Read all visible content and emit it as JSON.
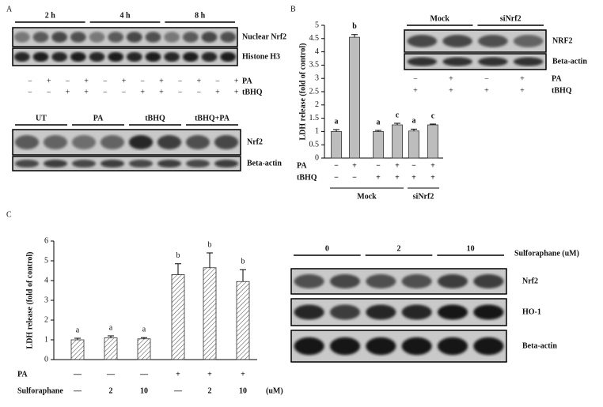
{
  "panel_labels": [
    "A",
    "B",
    "C"
  ],
  "blot_a_top": {
    "groups": [
      "2 h",
      "4 h",
      "8 h"
    ],
    "bands": [
      "Nuclear Nrf2",
      "Histone H3"
    ],
    "treatments": [
      {
        "name": "PA",
        "marks": [
          "−",
          "+",
          "−",
          "+",
          "−",
          "+",
          "−",
          "+",
          "−",
          "+",
          "−",
          "+"
        ]
      },
      {
        "name": "tBHQ",
        "marks": [
          "−",
          "−",
          "+",
          "+",
          "−",
          "−",
          "+",
          "+",
          "−",
          "−",
          "+",
          "+"
        ]
      }
    ]
  },
  "blot_a_bottom": {
    "groups": [
      "UT",
      "PA",
      "tBHQ",
      "tBHQ+PA"
    ],
    "bands": [
      "Nrf2",
      "Beta-actin"
    ]
  },
  "blot_b": {
    "groups": [
      "Mock",
      "siNrf2"
    ],
    "bands": [
      "NRF2",
      "Beta-actin"
    ],
    "treatments": [
      {
        "name": "PA",
        "marks": [
          "−",
          "+",
          "−",
          "+"
        ]
      },
      {
        "name": "tBHQ",
        "marks": [
          "+",
          "+",
          "+",
          "+"
        ]
      }
    ]
  },
  "blot_c": {
    "title": "Sulforaphane (uM)",
    "groups": [
      "0",
      "2",
      "10"
    ],
    "bands": [
      "Nrf2",
      "HO-1",
      "Beta-actin"
    ]
  },
  "chart_data": [
    {
      "type": "bar",
      "ylabel": "LDH release (fold of control)",
      "color": "#bdbdbd",
      "hatch": false,
      "values": [
        1,
        4.55,
        1,
        1.25,
        1.02,
        1.25
      ],
      "errors": [
        0.07,
        0.1,
        0.04,
        0.06,
        0.07,
        0.03
      ],
      "bar_labels": [
        "a",
        "b",
        "a",
        "c",
        "a",
        "c"
      ],
      "ylim": [
        0,
        5
      ],
      "yticks": [
        0,
        0.5,
        1,
        1.5,
        2,
        2.5,
        3,
        3.5,
        4,
        4.5,
        5
      ],
      "treatments": [
        {
          "name": "PA",
          "marks": [
            "−",
            "+",
            "−",
            "+",
            "−",
            "+"
          ]
        },
        {
          "name": "tBHQ",
          "marks": [
            "−",
            "−",
            "+",
            "+",
            "+",
            "+"
          ]
        }
      ],
      "groups": [
        "Mock",
        "siNrf2"
      ]
    },
    {
      "type": "bar",
      "ylabel": "LDH release (fold of control)",
      "color": "#ffffff",
      "hatch": true,
      "values": [
        1,
        1.1,
        1.05,
        4.3,
        4.65,
        3.95
      ],
      "errors": [
        0.08,
        0.1,
        0.06,
        0.55,
        0.75,
        0.6
      ],
      "bar_labels": [
        "a",
        "a",
        "a",
        "b",
        "b",
        "b"
      ],
      "ylim": [
        0,
        6
      ],
      "yticks": [
        0,
        1,
        2,
        3,
        4,
        5,
        6
      ],
      "treatments": [
        {
          "name": "PA",
          "marks": [
            "—",
            "—",
            "—",
            "+",
            "+",
            "+"
          ]
        },
        {
          "name": "Sulforaphane",
          "marks": [
            "—",
            "2",
            "10",
            "—",
            "2",
            "10"
          ]
        }
      ],
      "unit": "(uM)"
    }
  ]
}
